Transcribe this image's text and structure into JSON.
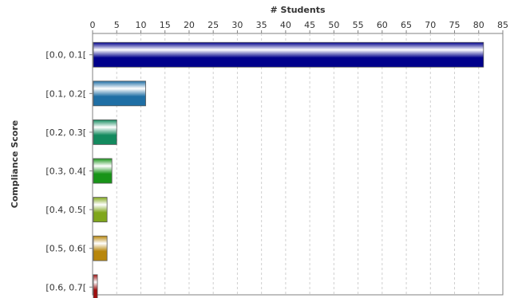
{
  "chart_data": {
    "type": "bar",
    "orientation": "horizontal",
    "title": "",
    "xlabel": "# Students",
    "ylabel": "Compliance Score",
    "xaxis_position": "top",
    "xlim": [
      0,
      85
    ],
    "xticks": [
      0,
      5,
      10,
      15,
      20,
      25,
      30,
      35,
      40,
      45,
      50,
      55,
      60,
      65,
      70,
      75,
      80,
      85
    ],
    "grid": "vertical dashed",
    "legend": "none",
    "categories": [
      "[0.0, 0.1[",
      "[0.1, 0.2[",
      "[0.2, 0.3[",
      "[0.3, 0.4[",
      "[0.4, 0.5[",
      "[0.5, 0.6[",
      "[0.6, 0.7["
    ],
    "values": [
      81,
      11,
      5,
      4,
      3,
      3,
      1
    ],
    "colors": [
      "#00008b",
      "#1f6fa5",
      "#138a5e",
      "#189418",
      "#7fa61c",
      "#b8860b",
      "#a01010"
    ]
  }
}
